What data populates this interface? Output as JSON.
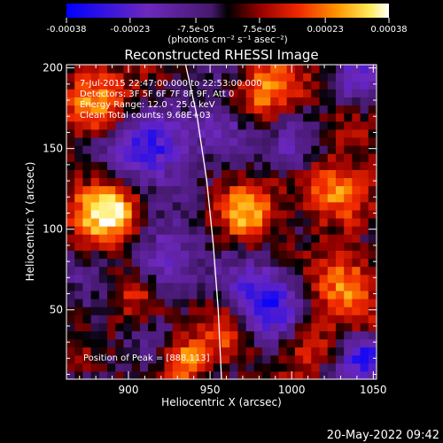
{
  "chart_data": {
    "type": "heatmap",
    "title": "Reconstructed RHESSI Image",
    "xlabel": "Heliocentric X (arcsec)",
    "ylabel": "Heliocentric Y (arcsec)",
    "xlim": [
      862,
      1052
    ],
    "ylim": [
      7,
      202
    ],
    "x_ticks": [
      900,
      950,
      1000,
      1050
    ],
    "y_ticks": [
      50,
      100,
      150,
      200
    ],
    "colorbar": {
      "ticks": [
        "-0.00038",
        "-0.00023",
        "-7.5e-05",
        "7.5e-05",
        "0.00023",
        "0.00038"
      ],
      "tick_values": [
        -0.00038,
        -0.00023,
        -7.5e-05,
        7.5e-05,
        0.00023,
        0.00038
      ],
      "range": [
        -0.00038,
        0.00038
      ],
      "units": "(photons cm⁻² s⁻¹ asec⁻²)"
    },
    "annotations": [
      "7-Jul-2015 22:47:00.000 to 22:53:00.000",
      "Detectors: 3F 5F 6F 7F 8F 9F, Att 0",
      "Energy Range: 12.0 - 25.0 keV",
      "Clean     Total counts: 9.68E+03"
    ],
    "peak_label": "Position of Peak = [888,113]",
    "timestamp": "20-May-2022 09:42",
    "grid_cell_arcsec": 5,
    "limb_arc": [
      [
        935,
        202
      ],
      [
        942,
        170
      ],
      [
        948,
        130
      ],
      [
        952,
        90
      ],
      [
        955,
        50
      ],
      [
        957,
        7
      ]
    ],
    "hotspots": [
      {
        "x": 888,
        "y": 113,
        "amp": 1.0,
        "r": 14
      },
      {
        "x": 878,
        "y": 180,
        "amp": 0.7,
        "r": 15
      },
      {
        "x": 905,
        "y": 60,
        "amp": 0.55,
        "r": 12
      },
      {
        "x": 935,
        "y": 18,
        "amp": 0.8,
        "r": 10
      },
      {
        "x": 972,
        "y": 112,
        "amp": 0.75,
        "r": 12
      },
      {
        "x": 985,
        "y": 185,
        "amp": 0.8,
        "r": 13
      },
      {
        "x": 1028,
        "y": 125,
        "amp": 0.9,
        "r": 14
      },
      {
        "x": 1035,
        "y": 65,
        "amp": 0.75,
        "r": 13
      },
      {
        "x": 1010,
        "y": 30,
        "amp": 0.6,
        "r": 12
      },
      {
        "x": 960,
        "y": 40,
        "amp": 0.4,
        "r": 10
      }
    ],
    "coldspots": [
      {
        "x": 915,
        "y": 150,
        "amp": 0.9,
        "r": 16
      },
      {
        "x": 920,
        "y": 75,
        "amp": 0.8,
        "r": 14
      },
      {
        "x": 985,
        "y": 55,
        "amp": 0.9,
        "r": 15
      },
      {
        "x": 1045,
        "y": 22,
        "amp": 1.0,
        "r": 10
      },
      {
        "x": 955,
        "y": 165,
        "amp": 0.6,
        "r": 12
      },
      {
        "x": 1000,
        "y": 150,
        "amp": 0.5,
        "r": 10
      },
      {
        "x": 1040,
        "y": 190,
        "amp": 0.6,
        "r": 11
      }
    ]
  }
}
